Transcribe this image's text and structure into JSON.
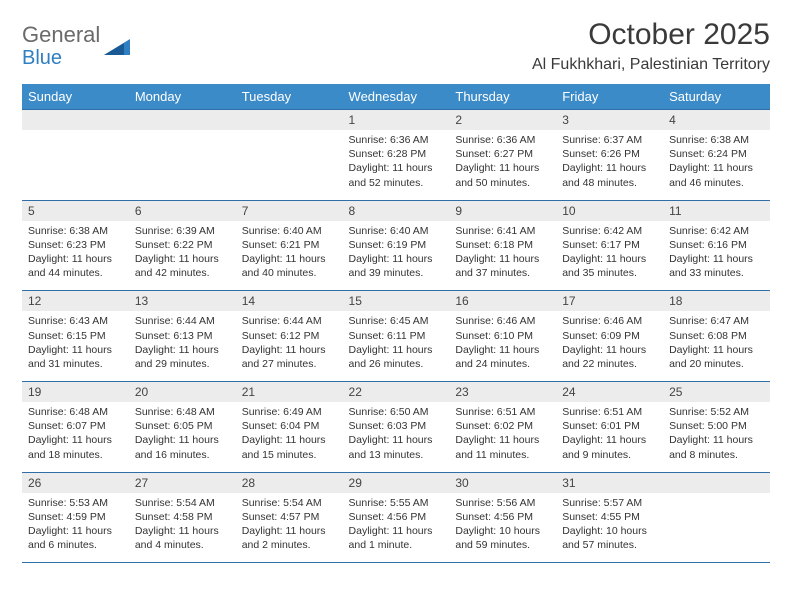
{
  "brand": {
    "text1": "General",
    "text2": "Blue"
  },
  "title": "October 2025",
  "location": "Al Fukhkhari, Palestinian Territory",
  "colors": {
    "header_bg": "#3b8bc9",
    "header_text": "#ffffff",
    "rule": "#2f6fa8",
    "daynum_bg": "#ececec",
    "body_text": "#333333",
    "brand_gray": "#6a6a6a",
    "brand_blue": "#2f7fc2",
    "page_bg": "#ffffff"
  },
  "typography": {
    "title_fontsize": 30,
    "location_fontsize": 16,
    "header_fontsize": 13,
    "daynum_fontsize": 12,
    "detail_fontsize": 10.5
  },
  "day_headers": [
    "Sunday",
    "Monday",
    "Tuesday",
    "Wednesday",
    "Thursday",
    "Friday",
    "Saturday"
  ],
  "weeks": [
    [
      {
        "n": "",
        "sr": "",
        "ss": "",
        "dl1": "",
        "dl2": ""
      },
      {
        "n": "",
        "sr": "",
        "ss": "",
        "dl1": "",
        "dl2": ""
      },
      {
        "n": "",
        "sr": "",
        "ss": "",
        "dl1": "",
        "dl2": ""
      },
      {
        "n": "1",
        "sr": "Sunrise: 6:36 AM",
        "ss": "Sunset: 6:28 PM",
        "dl1": "Daylight: 11 hours",
        "dl2": "and 52 minutes."
      },
      {
        "n": "2",
        "sr": "Sunrise: 6:36 AM",
        "ss": "Sunset: 6:27 PM",
        "dl1": "Daylight: 11 hours",
        "dl2": "and 50 minutes."
      },
      {
        "n": "3",
        "sr": "Sunrise: 6:37 AM",
        "ss": "Sunset: 6:26 PM",
        "dl1": "Daylight: 11 hours",
        "dl2": "and 48 minutes."
      },
      {
        "n": "4",
        "sr": "Sunrise: 6:38 AM",
        "ss": "Sunset: 6:24 PM",
        "dl1": "Daylight: 11 hours",
        "dl2": "and 46 minutes."
      }
    ],
    [
      {
        "n": "5",
        "sr": "Sunrise: 6:38 AM",
        "ss": "Sunset: 6:23 PM",
        "dl1": "Daylight: 11 hours",
        "dl2": "and 44 minutes."
      },
      {
        "n": "6",
        "sr": "Sunrise: 6:39 AM",
        "ss": "Sunset: 6:22 PM",
        "dl1": "Daylight: 11 hours",
        "dl2": "and 42 minutes."
      },
      {
        "n": "7",
        "sr": "Sunrise: 6:40 AM",
        "ss": "Sunset: 6:21 PM",
        "dl1": "Daylight: 11 hours",
        "dl2": "and 40 minutes."
      },
      {
        "n": "8",
        "sr": "Sunrise: 6:40 AM",
        "ss": "Sunset: 6:19 PM",
        "dl1": "Daylight: 11 hours",
        "dl2": "and 39 minutes."
      },
      {
        "n": "9",
        "sr": "Sunrise: 6:41 AM",
        "ss": "Sunset: 6:18 PM",
        "dl1": "Daylight: 11 hours",
        "dl2": "and 37 minutes."
      },
      {
        "n": "10",
        "sr": "Sunrise: 6:42 AM",
        "ss": "Sunset: 6:17 PM",
        "dl1": "Daylight: 11 hours",
        "dl2": "and 35 minutes."
      },
      {
        "n": "11",
        "sr": "Sunrise: 6:42 AM",
        "ss": "Sunset: 6:16 PM",
        "dl1": "Daylight: 11 hours",
        "dl2": "and 33 minutes."
      }
    ],
    [
      {
        "n": "12",
        "sr": "Sunrise: 6:43 AM",
        "ss": "Sunset: 6:15 PM",
        "dl1": "Daylight: 11 hours",
        "dl2": "and 31 minutes."
      },
      {
        "n": "13",
        "sr": "Sunrise: 6:44 AM",
        "ss": "Sunset: 6:13 PM",
        "dl1": "Daylight: 11 hours",
        "dl2": "and 29 minutes."
      },
      {
        "n": "14",
        "sr": "Sunrise: 6:44 AM",
        "ss": "Sunset: 6:12 PM",
        "dl1": "Daylight: 11 hours",
        "dl2": "and 27 minutes."
      },
      {
        "n": "15",
        "sr": "Sunrise: 6:45 AM",
        "ss": "Sunset: 6:11 PM",
        "dl1": "Daylight: 11 hours",
        "dl2": "and 26 minutes."
      },
      {
        "n": "16",
        "sr": "Sunrise: 6:46 AM",
        "ss": "Sunset: 6:10 PM",
        "dl1": "Daylight: 11 hours",
        "dl2": "and 24 minutes."
      },
      {
        "n": "17",
        "sr": "Sunrise: 6:46 AM",
        "ss": "Sunset: 6:09 PM",
        "dl1": "Daylight: 11 hours",
        "dl2": "and 22 minutes."
      },
      {
        "n": "18",
        "sr": "Sunrise: 6:47 AM",
        "ss": "Sunset: 6:08 PM",
        "dl1": "Daylight: 11 hours",
        "dl2": "and 20 minutes."
      }
    ],
    [
      {
        "n": "19",
        "sr": "Sunrise: 6:48 AM",
        "ss": "Sunset: 6:07 PM",
        "dl1": "Daylight: 11 hours",
        "dl2": "and 18 minutes."
      },
      {
        "n": "20",
        "sr": "Sunrise: 6:48 AM",
        "ss": "Sunset: 6:05 PM",
        "dl1": "Daylight: 11 hours",
        "dl2": "and 16 minutes."
      },
      {
        "n": "21",
        "sr": "Sunrise: 6:49 AM",
        "ss": "Sunset: 6:04 PM",
        "dl1": "Daylight: 11 hours",
        "dl2": "and 15 minutes."
      },
      {
        "n": "22",
        "sr": "Sunrise: 6:50 AM",
        "ss": "Sunset: 6:03 PM",
        "dl1": "Daylight: 11 hours",
        "dl2": "and 13 minutes."
      },
      {
        "n": "23",
        "sr": "Sunrise: 6:51 AM",
        "ss": "Sunset: 6:02 PM",
        "dl1": "Daylight: 11 hours",
        "dl2": "and 11 minutes."
      },
      {
        "n": "24",
        "sr": "Sunrise: 6:51 AM",
        "ss": "Sunset: 6:01 PM",
        "dl1": "Daylight: 11 hours",
        "dl2": "and 9 minutes."
      },
      {
        "n": "25",
        "sr": "Sunrise: 5:52 AM",
        "ss": "Sunset: 5:00 PM",
        "dl1": "Daylight: 11 hours",
        "dl2": "and 8 minutes."
      }
    ],
    [
      {
        "n": "26",
        "sr": "Sunrise: 5:53 AM",
        "ss": "Sunset: 4:59 PM",
        "dl1": "Daylight: 11 hours",
        "dl2": "and 6 minutes."
      },
      {
        "n": "27",
        "sr": "Sunrise: 5:54 AM",
        "ss": "Sunset: 4:58 PM",
        "dl1": "Daylight: 11 hours",
        "dl2": "and 4 minutes."
      },
      {
        "n": "28",
        "sr": "Sunrise: 5:54 AM",
        "ss": "Sunset: 4:57 PM",
        "dl1": "Daylight: 11 hours",
        "dl2": "and 2 minutes."
      },
      {
        "n": "29",
        "sr": "Sunrise: 5:55 AM",
        "ss": "Sunset: 4:56 PM",
        "dl1": "Daylight: 11 hours",
        "dl2": "and 1 minute."
      },
      {
        "n": "30",
        "sr": "Sunrise: 5:56 AM",
        "ss": "Sunset: 4:56 PM",
        "dl1": "Daylight: 10 hours",
        "dl2": "and 59 minutes."
      },
      {
        "n": "31",
        "sr": "Sunrise: 5:57 AM",
        "ss": "Sunset: 4:55 PM",
        "dl1": "Daylight: 10 hours",
        "dl2": "and 57 minutes."
      },
      {
        "n": "",
        "sr": "",
        "ss": "",
        "dl1": "",
        "dl2": ""
      }
    ]
  ]
}
